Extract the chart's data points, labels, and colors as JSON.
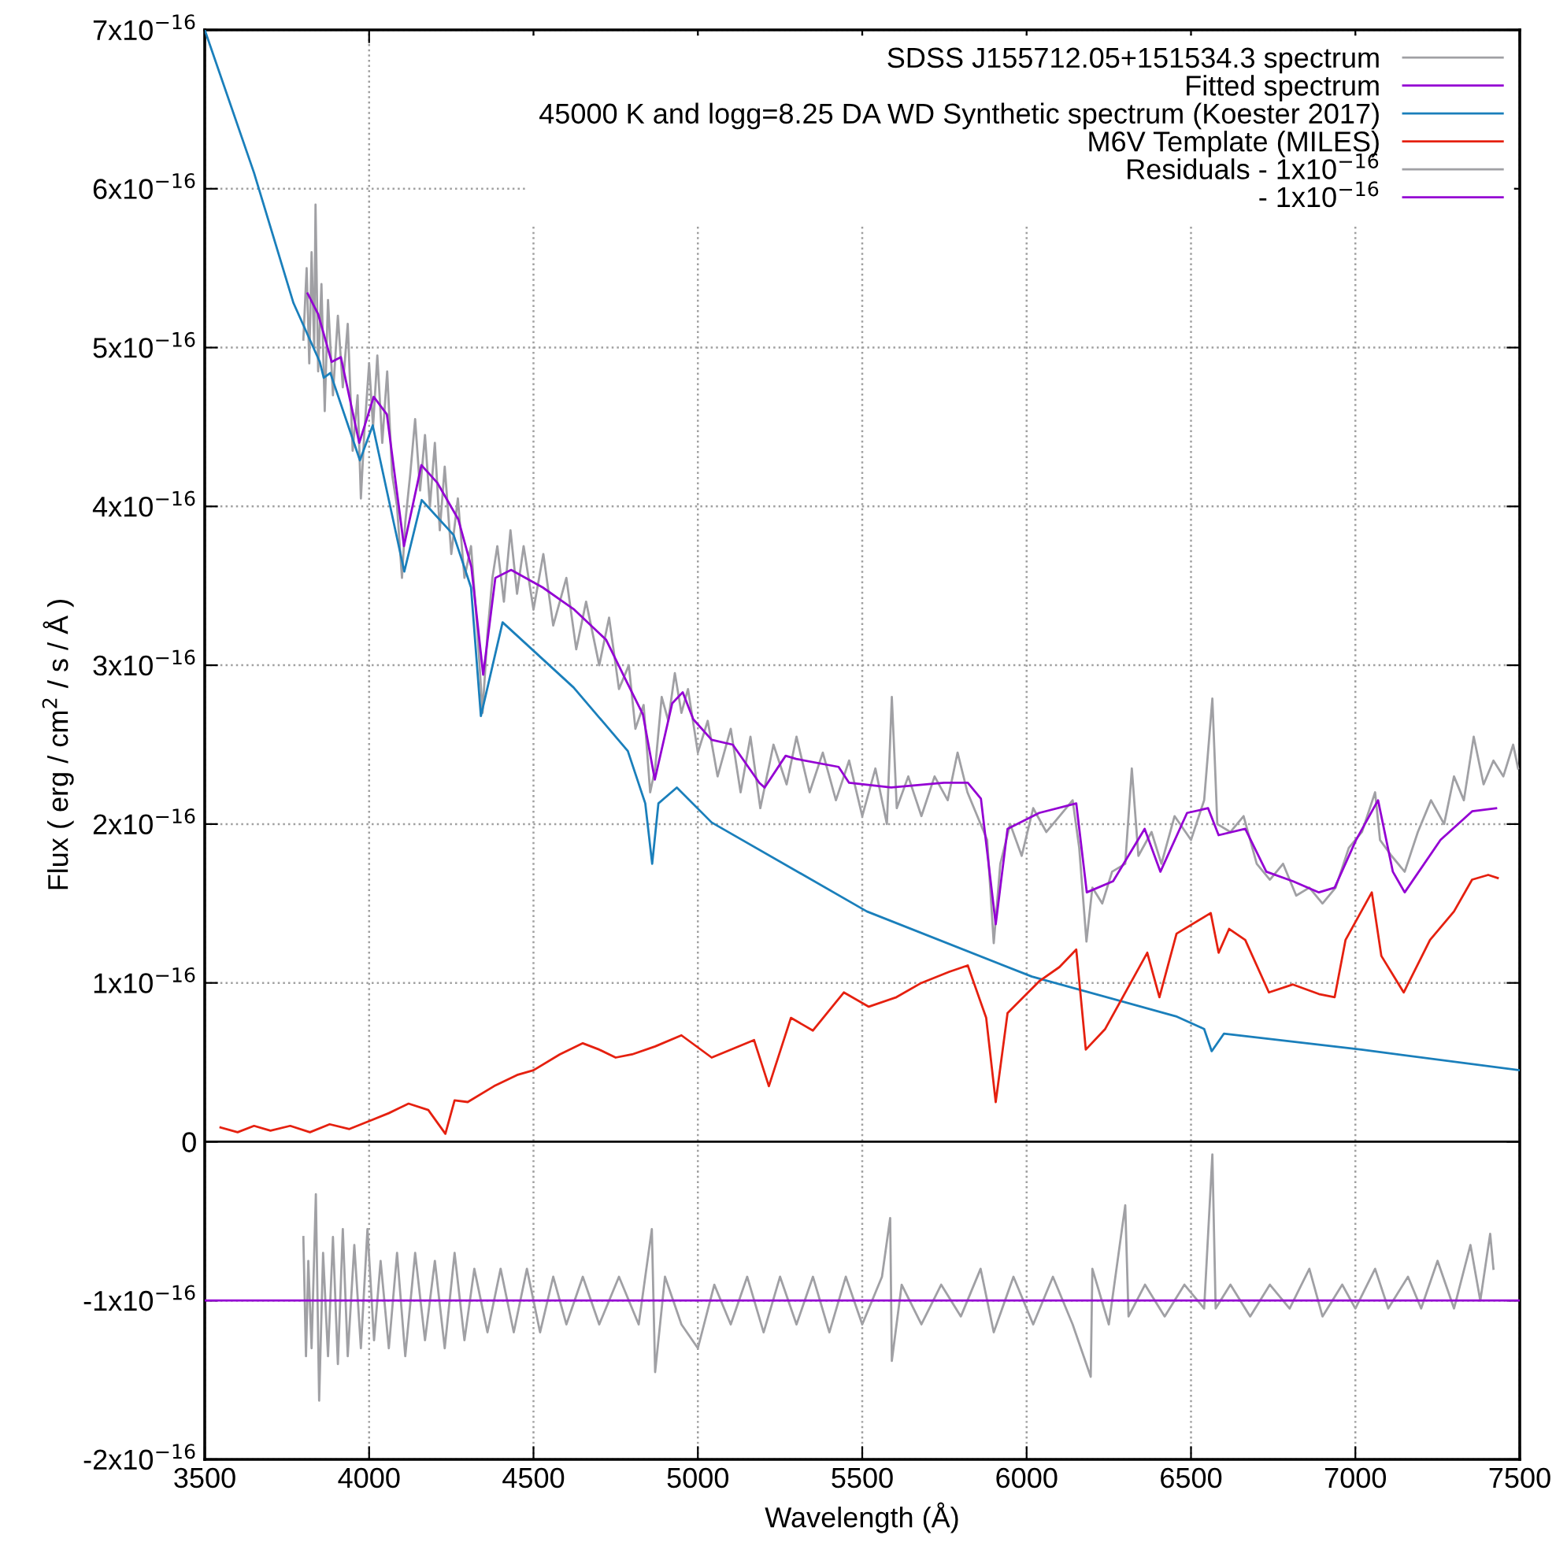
{
  "chart_data": {
    "type": "line",
    "xlabel": "Wavelength (Å)",
    "ylabel": "Flux ( erg / cm$^{2}$ / s / Å )",
    "xlim": [
      3500,
      7500
    ],
    "xticks": [
      3500,
      4000,
      4500,
      5000,
      5500,
      6000,
      6500,
      7000,
      7500
    ],
    "ylim": [
      -2e-16,
      7e-16
    ],
    "yticks": [
      {
        "value": -2e-16,
        "label": "-2x10$^{−16}$"
      },
      {
        "value": -1e-16,
        "label": "-1x10$^{−16}$"
      },
      0,
      {
        "value": 1e-16,
        "label": "1x10$^{−16}$"
      },
      {
        "value": 2e-16,
        "label": "2x10$^{−16}$"
      },
      {
        "value": 3e-16,
        "label": "3x10$^{−16}$"
      },
      {
        "value": 4e-16,
        "label": "4x10$^{−16}$"
      },
      {
        "value": 5e-16,
        "label": "5x10$^{−16}$"
      },
      {
        "value": 6e-16,
        "label": "6x10$^{−16}$"
      },
      {
        "value": 7e-16,
        "label": "7x10$^{−16}$"
      }
    ],
    "grid": true,
    "legend": "top right",
    "ref_lines": [
      {
        "axis": "y",
        "value": 0,
        "color": "#000000"
      }
    ],
    "series": [
      {
        "name": "SDSS J155712.05+151534.3 spectrum",
        "color": "#a0a0a4",
        "x": [
          3800,
          3810,
          3818,
          3825,
          3833,
          3837,
          3845,
          3855,
          3865,
          3875,
          3890,
          3905,
          3920,
          3935,
          3950,
          3965,
          3975,
          3985,
          4000,
          4012,
          4025,
          4040,
          4055,
          4070,
          4085,
          4100,
          4110,
          4125,
          4140,
          4155,
          4170,
          4185,
          4200,
          4215,
          4230,
          4250,
          4270,
          4290,
          4310,
          4330,
          4345,
          4360,
          4375,
          4390,
          4410,
          4430,
          4450,
          4470,
          4500,
          4530,
          4560,
          4600,
          4630,
          4660,
          4700,
          4730,
          4760,
          4790,
          4810,
          4835,
          4855,
          4870,
          4890,
          4910,
          4930,
          4950,
          4970,
          5000,
          5030,
          5060,
          5100,
          5130,
          5160,
          5190,
          5230,
          5270,
          5300,
          5340,
          5380,
          5420,
          5460,
          5500,
          5540,
          5575,
          5590,
          5605,
          5640,
          5680,
          5720,
          5760,
          5790,
          5820,
          5850,
          5880,
          5900,
          5920,
          5950,
          5985,
          6020,
          6060,
          6100,
          6140,
          6160,
          6182,
          6200,
          6230,
          6260,
          6300,
          6320,
          6340,
          6380,
          6410,
          6450,
          6500,
          6540,
          6565,
          6580,
          6620,
          6660,
          6700,
          6740,
          6780,
          6820,
          6860,
          6900,
          6940,
          6980,
          7020,
          7060,
          7075,
          7110,
          7150,
          7190,
          7230,
          7270,
          7300,
          7330,
          7360,
          7390,
          7420,
          7450,
          7480,
          7495
        ],
        "values": [
          5.05e-16,
          5.5e-16,
          4.9e-16,
          5.6e-16,
          5e-16,
          5.9e-16,
          4.85e-16,
          5.4e-16,
          4.6e-16,
          5.3e-16,
          4.7e-16,
          5.2e-16,
          4.75e-16,
          5.15e-16,
          4.35e-16,
          4.7e-16,
          4.05e-16,
          4.45e-16,
          4.9e-16,
          4.5e-16,
          4.95e-16,
          4.4e-16,
          4.85e-16,
          4.2e-16,
          4e-16,
          3.55e-16,
          3.9e-16,
          4.2e-16,
          4.55e-16,
          4.1e-16,
          4.45e-16,
          4e-16,
          4.4e-16,
          3.85e-16,
          4.25e-16,
          3.7e-16,
          4.05e-16,
          3.55e-16,
          3.75e-16,
          3.2e-16,
          2.7e-16,
          3.2e-16,
          3.55e-16,
          3.75e-16,
          3.4e-16,
          3.85e-16,
          3.45e-16,
          3.75e-16,
          3.35e-16,
          3.7e-16,
          3.25e-16,
          3.55e-16,
          3.1e-16,
          3.4e-16,
          3e-16,
          3.3e-16,
          2.85e-16,
          3e-16,
          2.6e-16,
          2.75e-16,
          2.2e-16,
          2.35e-16,
          2.8e-16,
          2.65e-16,
          2.95e-16,
          2.7e-16,
          2.85e-16,
          2.45e-16,
          2.65e-16,
          2.3e-16,
          2.6e-16,
          2.2e-16,
          2.55e-16,
          2.1e-16,
          2.5e-16,
          2.25e-16,
          2.55e-16,
          2.2e-16,
          2.45e-16,
          2.15e-16,
          2.4e-16,
          2.05e-16,
          2.35e-16,
          2e-16,
          2.8e-16,
          2.1e-16,
          2.3e-16,
          2.05e-16,
          2.3e-16,
          2.15e-16,
          2.45e-16,
          2.2e-16,
          2.05e-16,
          1.9e-16,
          1.25e-16,
          1.75e-16,
          2e-16,
          1.8e-16,
          2.1e-16,
          1.95e-16,
          2.05e-16,
          2.15e-16,
          1.85e-16,
          1.26e-16,
          1.6e-16,
          1.5e-16,
          1.7e-16,
          1.75e-16,
          2.35e-16,
          1.8e-16,
          1.95e-16,
          1.75e-16,
          2.05e-16,
          1.9e-16,
          2.15e-16,
          2.79e-16,
          2e-16,
          1.95e-16,
          2.05e-16,
          1.75e-16,
          1.65e-16,
          1.75e-16,
          1.55e-16,
          1.6e-16,
          1.5e-16,
          1.6e-16,
          1.85e-16,
          1.95e-16,
          2.2e-16,
          1.9e-16,
          1.8e-16,
          1.7e-16,
          1.95e-16,
          2.15e-16,
          2e-16,
          2.3e-16,
          2.15e-16,
          2.55e-16,
          2.25e-16,
          2.4e-16,
          2.3e-16,
          2.5e-16,
          2.35e-16
        ]
      },
      {
        "name": "Fitted spectrum",
        "color": "#9400d3",
        "x": [
          3813,
          3845,
          3886,
          3914,
          3970,
          4014,
          4054,
          4106,
          4159,
          4207,
          4271,
          4311,
          4347,
          4384,
          4432,
          4528,
          4624,
          4721,
          4785,
          4833,
          4869,
          4922,
          4954,
          4986,
          5042,
          5106,
          5187,
          5203,
          5267,
          5299,
          5428,
          5460,
          5588,
          5749,
          5821,
          5861,
          5906,
          5942,
          6038,
          6151,
          6183,
          6263,
          6359,
          6407,
          6488,
          6552,
          6584,
          6665,
          6729,
          6810,
          6889,
          6937,
          7002,
          7069,
          7114,
          7150,
          7259,
          7355,
          7428
        ],
        "values": [
          5.34e-16,
          5.21e-16,
          4.91e-16,
          4.94e-16,
          4.4e-16,
          4.69e-16,
          4.58e-16,
          3.75e-16,
          4.26e-16,
          4.15e-16,
          3.92e-16,
          3.62e-16,
          2.94e-16,
          3.55e-16,
          3.6e-16,
          3.49e-16,
          3.35e-16,
          3.16e-16,
          2.89e-16,
          2.69e-16,
          2.28e-16,
          2.76e-16,
          2.83e-16,
          2.66e-16,
          2.53e-16,
          2.5e-16,
          2.26e-16,
          2.23e-16,
          2.43e-16,
          2.41e-16,
          2.36e-16,
          2.26e-16,
          2.23e-16,
          2.26e-16,
          2.26e-16,
          2.16e-16,
          1.37e-16,
          1.97e-16,
          2.07e-16,
          2.13e-16,
          1.57e-16,
          1.64e-16,
          1.97e-16,
          1.7e-16,
          2.07e-16,
          2.1e-16,
          1.93e-16,
          1.97e-16,
          1.7e-16,
          1.64e-16,
          1.57e-16,
          1.6e-16,
          1.9e-16,
          2.15e-16,
          1.7e-16,
          1.57e-16,
          1.9e-16,
          2.08e-16,
          2.1e-16
        ]
      },
      {
        "name": "45000 K and logg=8.25 DA WD Synthetic spectrum (Koester 2017)",
        "color": "#1a7fbb",
        "x": [
          3500,
          3650,
          3770,
          3850,
          3862,
          3882,
          3972,
          4011,
          4107,
          4160,
          4257,
          4310,
          4340,
          4406,
          4622,
          4787,
          4840,
          4861,
          4880,
          4936,
          5042,
          5514,
          6016,
          6454,
          6540,
          6563,
          6600,
          7018,
          7500
        ],
        "values": [
          7e-16,
          6.1e-16,
          5.28e-16,
          4.91e-16,
          4.81e-16,
          4.84e-16,
          4.29e-16,
          4.51e-16,
          3.59e-16,
          4.04e-16,
          3.82e-16,
          3.49e-16,
          2.68e-16,
          3.27e-16,
          2.86e-16,
          2.46e-16,
          2.13e-16,
          1.75e-16,
          2.13e-16,
          2.23e-16,
          2.01e-16,
          1.45e-16,
          1.04e-16,
          7.9e-17,
          7.1e-17,
          5.7e-17,
          6.8e-17,
          5.8e-17,
          4.5e-17
        ]
      },
      {
        "name": "M6V Template (MILES)",
        "color": "#e5200f",
        "x": [
          3548,
          3600,
          3650,
          3700,
          3760,
          3820,
          3880,
          3940,
          4000,
          4060,
          4120,
          4180,
          4232,
          4260,
          4300,
          4380,
          4450,
          4500,
          4580,
          4650,
          4700,
          4750,
          4800,
          4870,
          4950,
          5042,
          5100,
          5171,
          5216,
          5283,
          5350,
          5444,
          5520,
          5604,
          5680,
          5765,
          5821,
          5877,
          5906,
          5942,
          6038,
          6100,
          6151,
          6180,
          6239,
          6327,
          6367,
          6404,
          6456,
          6560,
          6584,
          6616,
          6665,
          6737,
          6810,
          6889,
          6937,
          6970,
          7050,
          7079,
          7147,
          7227,
          7300,
          7355,
          7404,
          7433
        ],
        "values": [
          9e-18,
          6e-18,
          1e-17,
          7e-18,
          1e-17,
          6e-18,
          1.1e-17,
          8e-18,
          1.3e-17,
          1.8e-17,
          2.4e-17,
          2e-17,
          5e-18,
          2.6e-17,
          2.5e-17,
          3.5e-17,
          4.2e-17,
          4.5e-17,
          5.5e-17,
          6.2e-17,
          5.8e-17,
          5.3e-17,
          5.5e-17,
          6e-17,
          6.7e-17,
          5.3e-17,
          5.8e-17,
          6.4e-17,
          3.5e-17,
          7.8e-17,
          7e-17,
          9.4e-17,
          8.5e-17,
          9.1e-17,
          1e-16,
          1.07e-16,
          1.11e-16,
          7.8e-17,
          2.5e-17,
          8.1e-17,
          1.01e-16,
          1.1e-16,
          1.21e-16,
          5.8e-17,
          7.1e-17,
          1.04e-16,
          1.19e-16,
          9.1e-17,
          1.31e-16,
          1.44e-16,
          1.19e-16,
          1.34e-16,
          1.27e-16,
          9.4e-17,
          9.9e-17,
          9.3e-17,
          9.1e-17,
          1.27e-16,
          1.57e-16,
          1.17e-16,
          9.4e-17,
          1.27e-16,
          1.45e-16,
          1.65e-16,
          1.68e-16,
          1.66e-16
        ]
      },
      {
        "name": "Residuals - 1x10$^{−16}$",
        "color": "#a0a0a4",
        "x": [
          3800,
          3808,
          3815,
          3825,
          3838,
          3848,
          3860,
          3875,
          3890,
          3905,
          3920,
          3935,
          3955,
          3975,
          3995,
          4015,
          4035,
          4060,
          4085,
          4110,
          4140,
          4170,
          4200,
          4230,
          4260,
          4290,
          4320,
          4360,
          4400,
          4440,
          4480,
          4520,
          4560,
          4600,
          4650,
          4700,
          4760,
          4820,
          4860,
          4870,
          4900,
          4950,
          5000,
          5050,
          5100,
          5150,
          5200,
          5250,
          5300,
          5350,
          5400,
          5450,
          5500,
          5560,
          5585,
          5590,
          5620,
          5680,
          5740,
          5800,
          5860,
          5900,
          5960,
          6020,
          6080,
          6140,
          6195,
          6200,
          6250,
          6300,
          6310,
          6360,
          6420,
          6480,
          6540,
          6565,
          6575,
          6620,
          6680,
          6740,
          6800,
          6860,
          6900,
          6960,
          7000,
          7060,
          7100,
          7160,
          7200,
          7250,
          7300,
          7350,
          7380,
          7410,
          7420
        ],
        "values": [
          -6e-17,
          -1.35e-16,
          -7.5e-17,
          -1.3e-16,
          -3.3e-17,
          -1.63e-16,
          -7e-17,
          -1.35e-16,
          -6e-17,
          -1.4e-16,
          -5.5e-17,
          -1.35e-16,
          -6.5e-17,
          -1.3e-16,
          -5.5e-17,
          -1.25e-16,
          -7.5e-17,
          -1.3e-16,
          -7e-17,
          -1.35e-16,
          -7e-17,
          -1.25e-16,
          -7.5e-17,
          -1.3e-16,
          -7e-17,
          -1.25e-16,
          -8e-17,
          -1.2e-16,
          -8e-17,
          -1.2e-16,
          -8e-17,
          -1.2e-16,
          -8.5e-17,
          -1.15e-16,
          -8.5e-17,
          -1.15e-16,
          -8.5e-17,
          -1.15e-16,
          -5.5e-17,
          -1.45e-16,
          -8.5e-17,
          -1.15e-16,
          -1.3e-16,
          -9e-17,
          -1.15e-16,
          -8.5e-17,
          -1.2e-16,
          -8.5e-17,
          -1.15e-16,
          -8.5e-17,
          -1.2e-16,
          -8.5e-17,
          -1.15e-16,
          -8.5e-17,
          -4.8e-17,
          -1.38e-16,
          -9e-17,
          -1.15e-16,
          -9e-17,
          -1.1e-16,
          -8e-17,
          -1.2e-16,
          -8.5e-17,
          -1.15e-16,
          -8.5e-17,
          -1.15e-16,
          -1.48e-16,
          -8e-17,
          -1.15e-16,
          -4e-17,
          -1.1e-16,
          -9e-17,
          -1.1e-16,
          -9e-17,
          -1.05e-16,
          -8e-18,
          -1.05e-16,
          -9e-17,
          -1.1e-16,
          -9e-17,
          -1.05e-16,
          -8e-17,
          -1.1e-16,
          -9e-17,
          -1.05e-16,
          -8e-17,
          -1.05e-16,
          -8.5e-17,
          -1.05e-16,
          -7.5e-17,
          -1.05e-16,
          -6.5e-17,
          -1e-16,
          -5.8e-17,
          -8e-17
        ]
      },
      {
        "name": "- 1x10$^{−16}$",
        "color": "#9400d3",
        "x": [
          3500,
          7500
        ],
        "values": [
          -1e-16,
          -1e-16
        ]
      }
    ]
  }
}
